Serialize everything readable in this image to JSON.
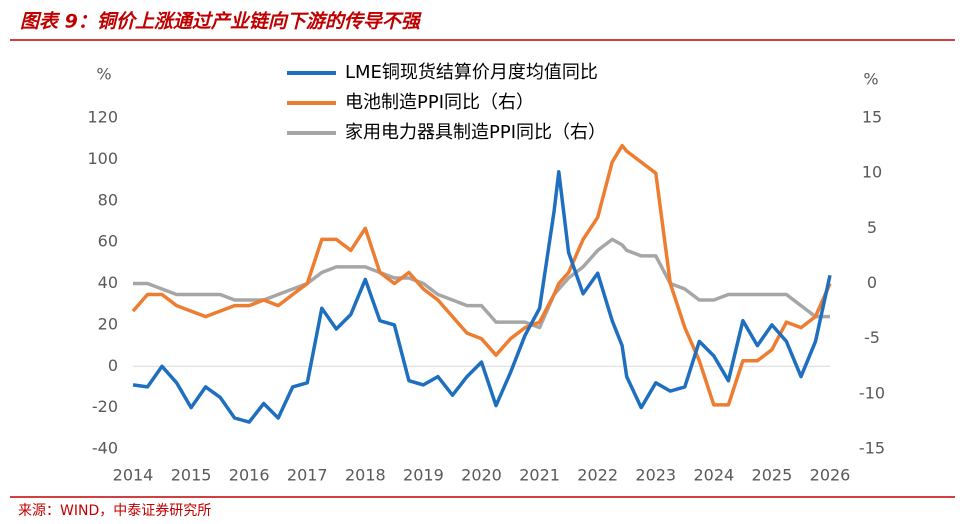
{
  "chart_data": {
    "type": "line",
    "title": "图表 9：铜价上涨通过产业链向下游的传导不强",
    "source": "来源：WIND，中泰证券研究所",
    "y_label": "%",
    "y2_label": "%",
    "x": [
      2014,
      2014.25,
      2014.5,
      2014.75,
      2015,
      2015.25,
      2015.5,
      2015.75,
      2016,
      2016.25,
      2016.5,
      2016.75,
      2017,
      2017.25,
      2017.5,
      2017.75,
      2018,
      2018.25,
      2018.5,
      2018.75,
      2019,
      2019.25,
      2019.5,
      2019.75,
      2020,
      2020.25,
      2020.5,
      2020.75,
      2021,
      2021.25,
      2021.33,
      2021.5,
      2021.75,
      2022,
      2022.25,
      2022.42,
      2022.5,
      2022.75,
      2023,
      2023.25,
      2023.5,
      2023.75,
      2024,
      2024.25,
      2024.5,
      2024.75,
      2025,
      2025.25,
      2025.5,
      2025.75,
      2026
    ],
    "series": [
      {
        "name": "LME铜现货结算价月度均值同比",
        "color": "#1f6fc0",
        "axis": "y",
        "values": [
          -9,
          -10,
          0,
          -8,
          -20,
          -10,
          -15,
          -25,
          -27,
          -18,
          -25,
          -10,
          -8,
          28,
          18,
          25,
          42,
          22,
          20,
          -7,
          -9,
          -5,
          -14,
          -5,
          2,
          -19,
          -3,
          15,
          28,
          75,
          94,
          55,
          35,
          45,
          22,
          10,
          -5,
          -20,
          -8,
          -12,
          -10,
          12,
          5,
          -7,
          22,
          10,
          20,
          12,
          -5,
          12,
          44
        ]
      },
      {
        "name": "电池制造PPI同比（右）",
        "color": "#ed7d31",
        "axis": "y2",
        "values": [
          -2.5,
          -1,
          -1,
          -2,
          -2.5,
          -3,
          -2.5,
          -2,
          -2,
          -1.5,
          -2,
          -1,
          0,
          4,
          4,
          3,
          5,
          1,
          0,
          1,
          -0.5,
          -1.5,
          -3,
          -4.5,
          -5,
          -6.5,
          -5,
          -4,
          -3.5,
          -1,
          0,
          1,
          4,
          6,
          11,
          12.5,
          12,
          11,
          10,
          0,
          -4,
          -7,
          -11,
          -11,
          -7,
          -7,
          -6,
          -3.5,
          -4,
          -3,
          0
        ]
      },
      {
        "name": "家用电力器具制造PPI同比（右）",
        "color": "#a6a6a6",
        "axis": "y2",
        "values": [
          0,
          0,
          -0.5,
          -1,
          -1,
          -1,
          -1,
          -1.5,
          -1.5,
          -1.5,
          -1,
          -0.5,
          0,
          1,
          1.5,
          1.5,
          1.5,
          1,
          0.5,
          0.5,
          0,
          -1,
          -1.5,
          -2,
          -2,
          -3.5,
          -3.5,
          -3.5,
          -4,
          -1,
          -0.5,
          0.5,
          1.5,
          3,
          4,
          3.5,
          3,
          2.5,
          2.5,
          0,
          -0.5,
          -1.5,
          -1.5,
          -1,
          -1,
          -1,
          -1,
          -1,
          -2,
          -3,
          -3
        ]
      }
    ],
    "xlim": [
      2014,
      2026
    ],
    "xticks": [
      2014,
      2015,
      2016,
      2017,
      2018,
      2019,
      2020,
      2021,
      2022,
      2023,
      2024,
      2025,
      2026
    ],
    "ylim": [
      -40,
      120
    ],
    "yticks": [
      -40,
      -20,
      0,
      20,
      40,
      60,
      80,
      100,
      120
    ],
    "y2lim": [
      -15,
      15
    ],
    "y2ticks": [
      -15,
      -10,
      -5,
      0,
      5,
      10,
      15
    ]
  }
}
